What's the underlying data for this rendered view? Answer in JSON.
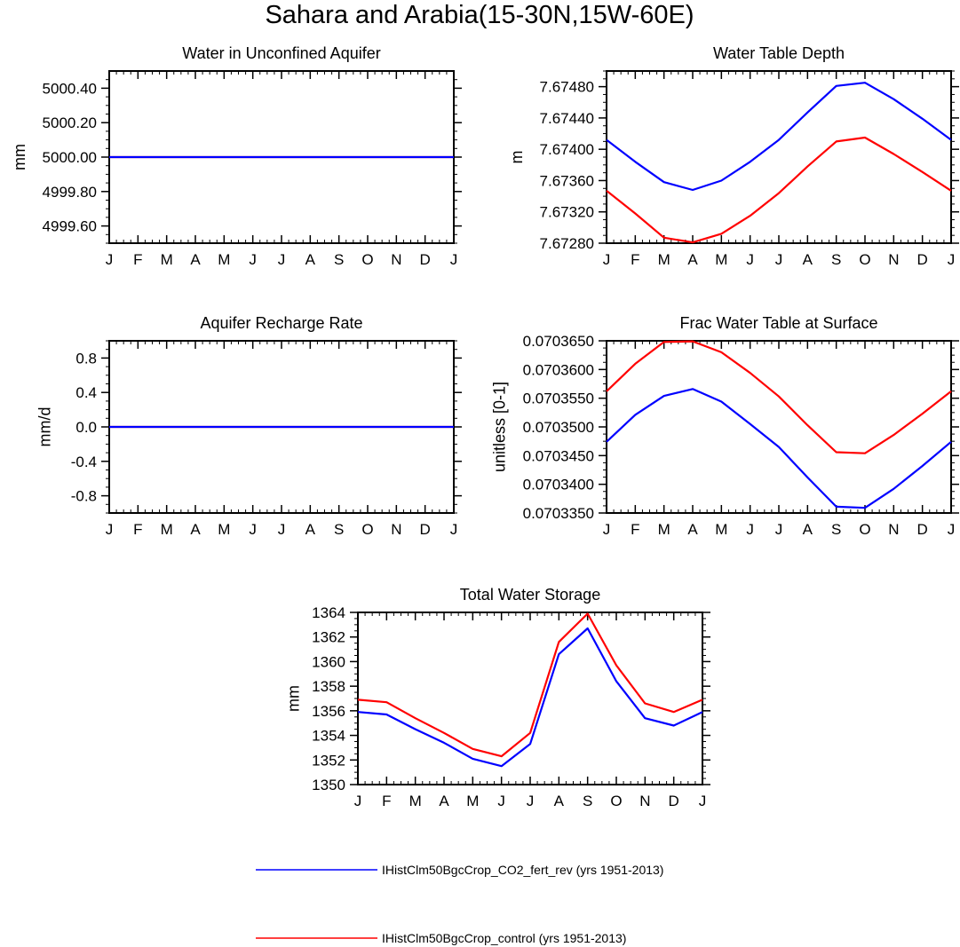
{
  "figure": {
    "title": "Sahara and Arabia(15-30N,15W-60E)"
  },
  "legend": [
    {
      "label": "IHistClm50BgcCrop_CO2_fert_rev (yrs 1951-2013)",
      "color": "#0000ff"
    },
    {
      "label": "IHistClm50BgcCrop_control (yrs 1951-2013)",
      "color": "#ff0000"
    }
  ],
  "chart_data": [
    {
      "id": "water-in-unconfined-aquifer",
      "type": "line",
      "title": "Water in Unconfined Aquifer",
      "ylabel": "mm",
      "categories": [
        "J",
        "F",
        "M",
        "A",
        "M",
        "J",
        "J",
        "A",
        "S",
        "O",
        "N",
        "D",
        "J"
      ],
      "ylim": [
        4999.5,
        5000.5
      ],
      "yticks": [
        4999.6,
        4999.8,
        5000.0,
        5000.2,
        5000.4
      ],
      "ytick_labels": [
        "4999.60",
        "4999.80",
        "5000.00",
        "5000.20",
        "5000.40"
      ],
      "series": [
        {
          "color": "#0000ff",
          "values": [
            5000,
            5000,
            5000,
            5000,
            5000,
            5000,
            5000,
            5000,
            5000,
            5000,
            5000,
            5000,
            5000
          ]
        },
        {
          "color": "#ff0000",
          "values": [
            5000,
            5000,
            5000,
            5000,
            5000,
            5000,
            5000,
            5000,
            5000,
            5000,
            5000,
            5000,
            5000
          ]
        }
      ]
    },
    {
      "id": "water-table-depth",
      "type": "line",
      "title": "Water Table Depth",
      "ylabel": "m",
      "categories": [
        "J",
        "F",
        "M",
        "A",
        "M",
        "J",
        "J",
        "A",
        "S",
        "O",
        "N",
        "D",
        "J"
      ],
      "ylim": [
        7.6728,
        7.675
      ],
      "yticks": [
        7.6728,
        7.6732,
        7.6736,
        7.674,
        7.6744,
        7.6748
      ],
      "ytick_labels": [
        "7.67280",
        "7.67320",
        "7.67360",
        "7.67400",
        "7.67440",
        "7.67480"
      ],
      "series": [
        {
          "color": "#0000ff",
          "values": [
            7.67412,
            7.67384,
            7.67358,
            7.67348,
            7.6736,
            7.67384,
            7.67412,
            7.67447,
            7.67481,
            7.67485,
            7.67464,
            7.67439,
            7.67412
          ]
        },
        {
          "color": "#ff0000",
          "values": [
            7.67347,
            7.67318,
            7.67287,
            7.67281,
            7.67292,
            7.67315,
            7.67344,
            7.67378,
            7.6741,
            7.67415,
            7.67394,
            7.67371,
            7.67347
          ]
        }
      ]
    },
    {
      "id": "aquifer-recharge-rate",
      "type": "line",
      "title": "Aquifer Recharge Rate",
      "ylabel": "mm/d",
      "categories": [
        "J",
        "F",
        "M",
        "A",
        "M",
        "J",
        "J",
        "A",
        "S",
        "O",
        "N",
        "D",
        "J"
      ],
      "ylim": [
        -1.0,
        1.0
      ],
      "yticks": [
        -0.8,
        -0.4,
        0.0,
        0.4,
        0.8
      ],
      "ytick_labels": [
        "-0.8",
        "-0.4",
        "0.0",
        "0.4",
        "0.8"
      ],
      "series": [
        {
          "color": "#0000ff",
          "values": [
            0,
            0,
            0,
            0,
            0,
            0,
            0,
            0,
            0,
            0,
            0,
            0,
            0
          ]
        },
        {
          "color": "#ff0000",
          "values": [
            0,
            0,
            0,
            0,
            0,
            0,
            0,
            0,
            0,
            0,
            0,
            0,
            0
          ]
        }
      ]
    },
    {
      "id": "frac-water-table-at-surface",
      "type": "line",
      "title": "Frac Water Table at Surface",
      "ylabel": "unitless [0-1]",
      "categories": [
        "J",
        "F",
        "M",
        "A",
        "M",
        "J",
        "J",
        "A",
        "S",
        "O",
        "N",
        "D",
        "J"
      ],
      "ylim": [
        0.070335,
        0.070365
      ],
      "yticks": [
        0.070335,
        0.07034,
        0.070345,
        0.07035,
        0.070355,
        0.07036,
        0.070365
      ],
      "ytick_labels": [
        "0.0703350",
        "0.0703400",
        "0.0703450",
        "0.0703500",
        "0.0703550",
        "0.0703600",
        "0.0703650"
      ],
      "series": [
        {
          "color": "#0000ff",
          "values": [
            0.0703474,
            0.0703521,
            0.0703554,
            0.0703566,
            0.0703544,
            0.0703505,
            0.0703465,
            0.0703412,
            0.0703361,
            0.0703359,
            0.0703392,
            0.0703432,
            0.0703474
          ]
        },
        {
          "color": "#ff0000",
          "values": [
            0.0703562,
            0.070361,
            0.0703648,
            0.0703649,
            0.070363,
            0.0703594,
            0.0703553,
            0.0703503,
            0.0703456,
            0.0703454,
            0.0703486,
            0.0703523,
            0.0703562
          ]
        }
      ]
    },
    {
      "id": "total-water-storage",
      "type": "line",
      "title": "Total Water Storage",
      "ylabel": "mm",
      "categories": [
        "J",
        "F",
        "M",
        "A",
        "M",
        "J",
        "J",
        "A",
        "S",
        "O",
        "N",
        "D",
        "J"
      ],
      "ylim": [
        1350,
        1364
      ],
      "yticks": [
        1350,
        1352,
        1354,
        1356,
        1358,
        1360,
        1362,
        1364
      ],
      "ytick_labels": [
        "1350",
        "1352",
        "1354",
        "1356",
        "1358",
        "1360",
        "1362",
        "1364"
      ],
      "series": [
        {
          "color": "#0000ff",
          "values": [
            1355.9,
            1355.7,
            1354.5,
            1353.4,
            1352.1,
            1351.5,
            1353.3,
            1360.6,
            1362.7,
            1358.4,
            1355.4,
            1354.8,
            1355.9
          ]
        },
        {
          "color": "#ff0000",
          "values": [
            1356.9,
            1356.7,
            1355.4,
            1354.2,
            1352.9,
            1352.3,
            1354.2,
            1361.6,
            1363.9,
            1359.7,
            1356.6,
            1355.9,
            1356.9
          ]
        }
      ]
    }
  ]
}
